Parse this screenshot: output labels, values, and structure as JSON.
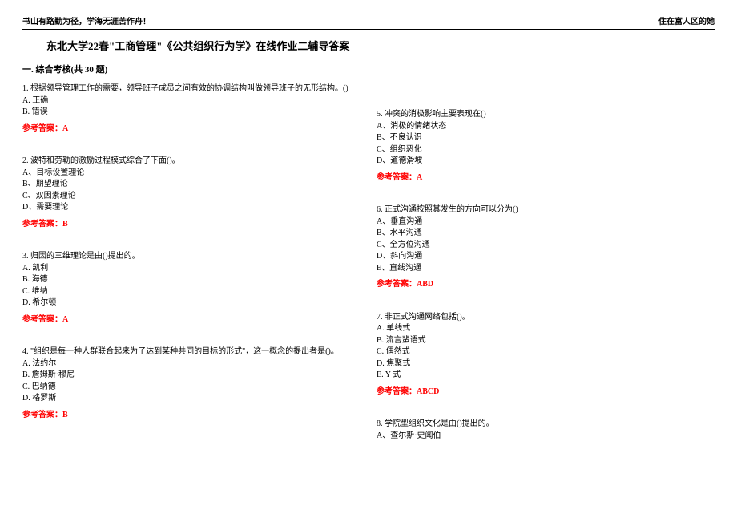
{
  "header": {
    "left": "书山有路勤为径，学海无涯苦作舟！",
    "right": "住在富人区的她"
  },
  "title": "东北大学22春\"工商管理\"《公共组织行为学》在线作业二辅导答案",
  "section_header": "一. 综合考核(共 30 题)",
  "answer_label": "参考答案：",
  "left_column": [
    {
      "text": "1. 根据领导管理工作的需要，领导班子成员之间有效的协调结构叫做领导班子的无形结构。()",
      "options": [
        "A. 正确",
        "B. 错误"
      ],
      "answer": "A"
    },
    {
      "text": "2. 波特和劳勒的激励过程模式综合了下面()。",
      "options": [
        "A、目标设置理论",
        "B、期望理论",
        "C、双因素理论",
        "D、需要理论"
      ],
      "answer": "B"
    },
    {
      "text": "3. 归因的三维理论是由()提出的。",
      "options": [
        "A. 凯利",
        "B. 海德",
        "C. 维纳",
        "D. 希尔顿"
      ],
      "answer": "A"
    },
    {
      "text": "4. \"组织是每一种人群联合起来为了达到某种共同的目标的形式\"，这一概念的提出者是()。",
      "options": [
        "A. 法约尔",
        "B. 詹姆斯·穆尼",
        "C. 巴纳德",
        "D. 格罗斯"
      ],
      "answer": "B"
    }
  ],
  "right_column": [
    {
      "text": "5. 冲突的消极影响主要表现在()",
      "options": [
        "A、消极的情绪状态",
        "B、不良认识",
        "C、组织恶化",
        "D、道德滑坡"
      ],
      "answer": "A"
    },
    {
      "text": "6. 正式沟通按照其发生的方向可以分为()",
      "options": [
        "A、垂直沟通",
        "B、水平沟通",
        "C、全方位沟通",
        "D、斜向沟通",
        "E、直线沟通"
      ],
      "answer": "ABD"
    },
    {
      "text": "7. 非正式沟通网络包括()。",
      "options": [
        "A. 单线式",
        "B. 流言蜚语式",
        "C. 偶然式",
        "D. 焦聚式",
        "E. Y 式"
      ],
      "answer": "ABCD"
    },
    {
      "text": "8. 学院型组织文化是由()提出的。",
      "options": [
        "A、查尔斯·史闻伯"
      ],
      "answer": ""
    }
  ],
  "colors": {
    "answer": "#ff0000",
    "text": "#000000",
    "background": "#ffffff"
  }
}
